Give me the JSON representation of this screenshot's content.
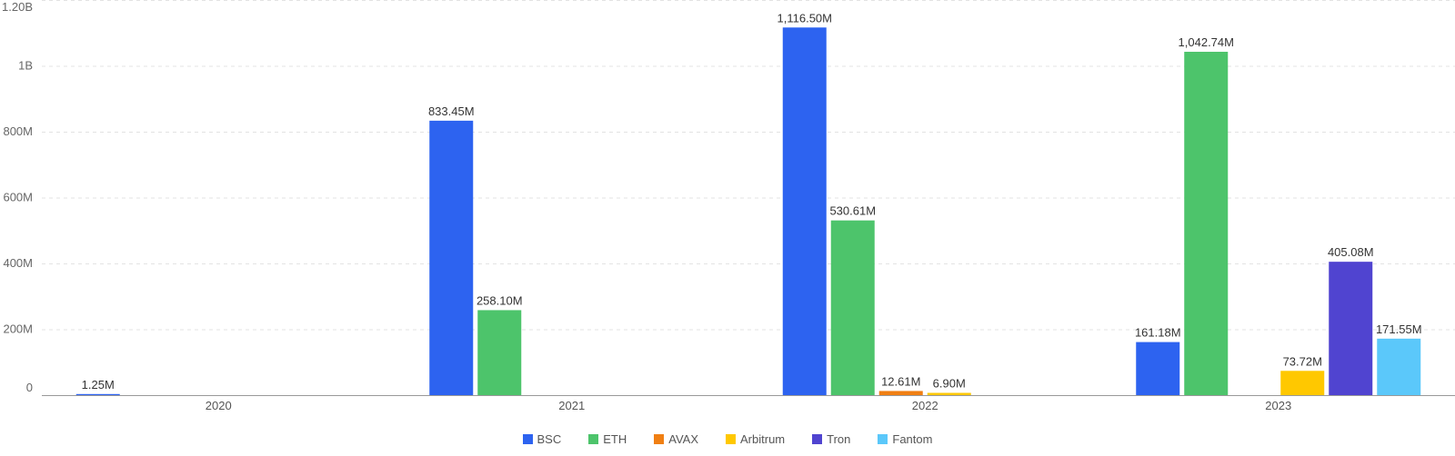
{
  "chart_data": {
    "type": "bar",
    "categories": [
      "2020",
      "2021",
      "2022",
      "2023"
    ],
    "ylim": [
      0,
      1200000000
    ],
    "y_ticks": [
      {
        "value": 0,
        "label": "0"
      },
      {
        "value": 200000000,
        "label": "200M"
      },
      {
        "value": 400000000,
        "label": "400M"
      },
      {
        "value": 600000000,
        "label": "600M"
      },
      {
        "value": 800000000,
        "label": "800M"
      },
      {
        "value": 1000000000,
        "label": "1B"
      },
      {
        "value": 1200000000,
        "label": "1.20B"
      }
    ],
    "grid": true,
    "legend_position": "bottom-center",
    "series": [
      {
        "name": "BSC",
        "color": "#2d63f0",
        "values": [
          1250000,
          833450000,
          1116500000,
          161180000
        ],
        "labels": [
          "1.25M",
          "833.45M",
          "1,116.50M",
          "161.18M"
        ]
      },
      {
        "name": "ETH",
        "color": "#4dc46b",
        "values": [
          null,
          258100000,
          530610000,
          1042740000
        ],
        "labels": [
          null,
          "258.10M",
          "530.61M",
          "1,042.74M"
        ]
      },
      {
        "name": "AVAX",
        "color": "#f07f13",
        "values": [
          null,
          null,
          12610000,
          null
        ],
        "labels": [
          null,
          null,
          "12.61M",
          null
        ]
      },
      {
        "name": "Arbitrum",
        "color": "#ffc800",
        "values": [
          null,
          null,
          6900000,
          73720000
        ],
        "labels": [
          null,
          null,
          "6.90M",
          "73.72M"
        ]
      },
      {
        "name": "Tron",
        "color": "#5044d0",
        "values": [
          null,
          null,
          null,
          405080000
        ],
        "labels": [
          null,
          null,
          null,
          "405.08M"
        ]
      },
      {
        "name": "Fantom",
        "color": "#5bc8fa",
        "values": [
          null,
          null,
          null,
          171550000
        ],
        "labels": [
          null,
          null,
          null,
          "171.55M"
        ]
      }
    ]
  }
}
